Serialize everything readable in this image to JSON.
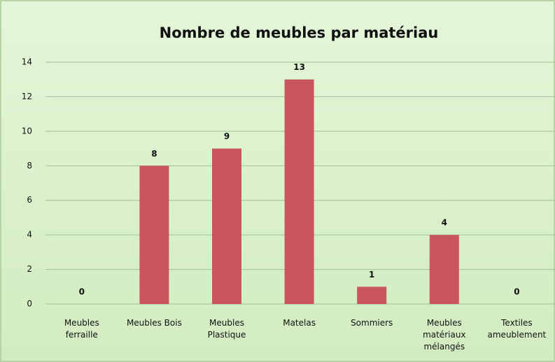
{
  "chart_data": {
    "type": "bar",
    "title": "Nombre de meubles par matériau",
    "categories": [
      "Meubles\nferraille",
      "Meubles Bois",
      "Meubles\nPlastique",
      "Matelas",
      "Sommiers",
      "Meubles\nmatériaux\nmélangés",
      "Textiles\nameublement"
    ],
    "values": [
      0,
      8,
      9,
      13,
      1,
      4,
      0
    ],
    "color": "#c9555f",
    "ylim": [
      0,
      14
    ],
    "yticks": [
      0,
      2,
      4,
      6,
      8,
      10,
      12,
      14
    ],
    "grid": true
  }
}
